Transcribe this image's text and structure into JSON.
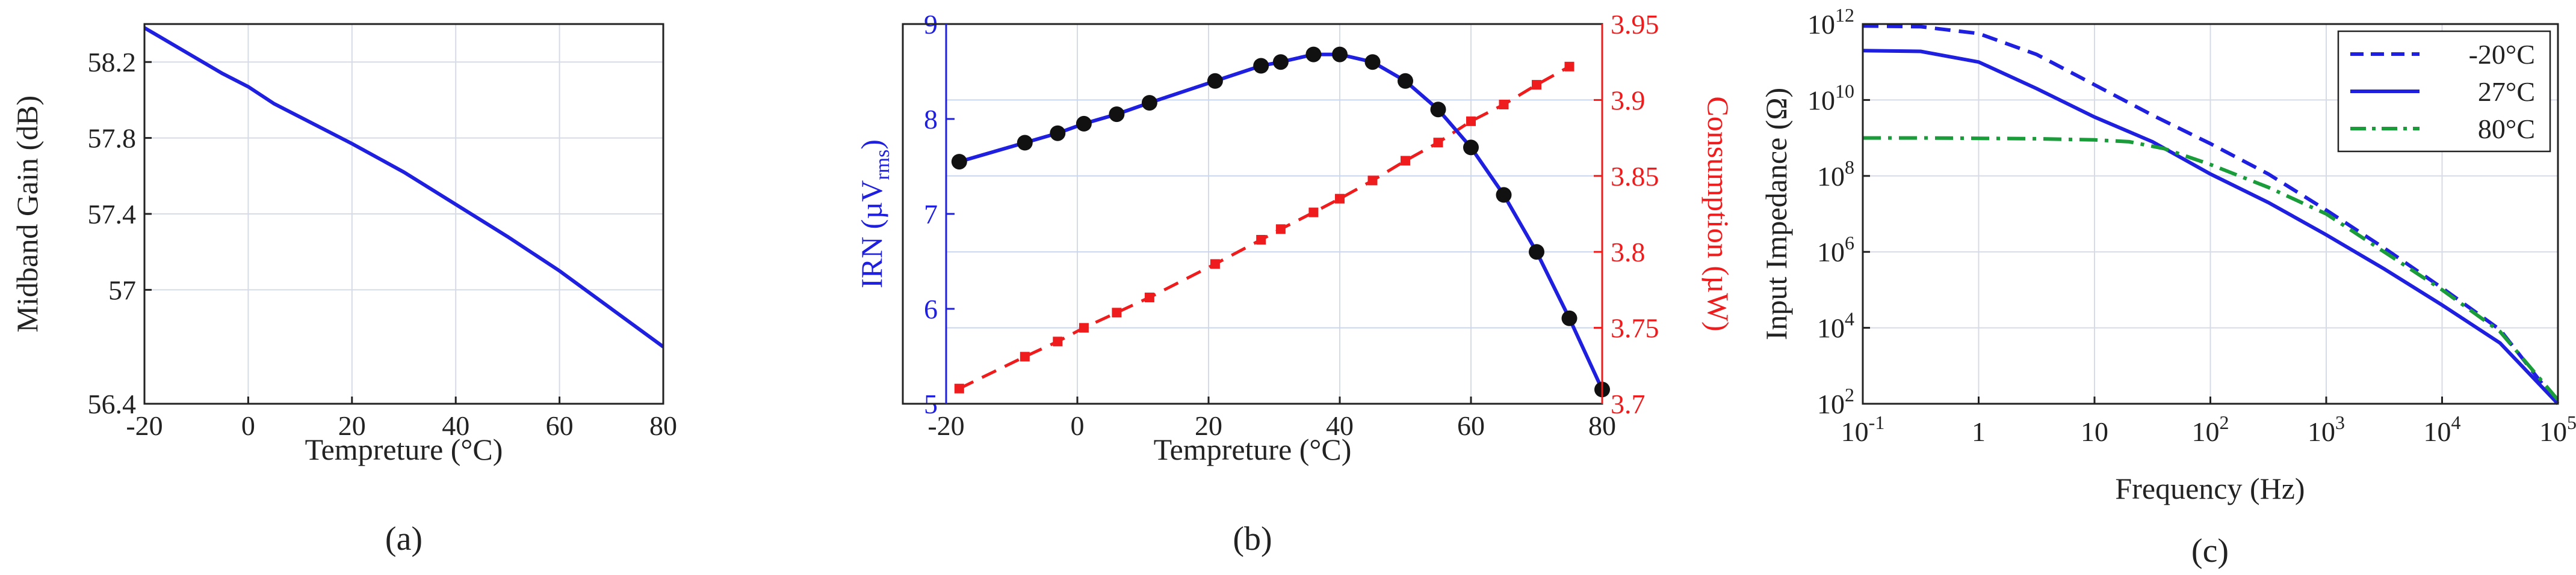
{
  "chart_data": [
    {
      "id": "a",
      "type": "line",
      "caption": "(a)",
      "xlabel": "Tempreture (°C)",
      "ylabel": "Midband Gain (dB)",
      "xlim": [
        -20,
        80
      ],
      "ylim": [
        56.4,
        58.4
      ],
      "xticks": [
        -20,
        0,
        20,
        40,
        60,
        80
      ],
      "xtick_labels": [
        "-20",
        "0",
        "20",
        "40",
        "60",
        "80"
      ],
      "yticks": [
        56.4,
        57.0,
        57.4,
        57.8,
        58.2
      ],
      "ytick_labels": [
        "56.4",
        "57",
        "57.4",
        "57.8",
        "58.2"
      ],
      "grid": true,
      "series": [
        {
          "name": "Midband Gain",
          "color": "#1f1fe0",
          "x": [
            -20,
            -10,
            -5,
            0,
            5,
            10,
            20,
            30,
            40,
            50,
            60,
            70,
            80
          ],
          "y": [
            58.38,
            58.22,
            58.14,
            58.07,
            57.98,
            57.91,
            57.77,
            57.62,
            57.45,
            57.28,
            57.1,
            56.9,
            56.7
          ]
        }
      ]
    },
    {
      "id": "b",
      "type": "line",
      "caption": "(b)",
      "xlabel": "Tempreture (°C)",
      "ylabel": "IRN (µV",
      "ylabel_sub": "rms",
      "ylabel_end": ")",
      "y2label": "Consumption (µW)",
      "xlim": [
        -20,
        80
      ],
      "ylim": [
        5,
        9
      ],
      "y2lim": [
        3.7,
        3.95
      ],
      "xticks": [
        -20,
        0,
        20,
        40,
        60,
        80
      ],
      "xtick_labels": [
        "-20",
        "0",
        "20",
        "40",
        "60",
        "80"
      ],
      "yticks": [
        5,
        6,
        7,
        8,
        9
      ],
      "ytick_labels": [
        "5",
        "6",
        "7",
        "8",
        "9"
      ],
      "y2ticks": [
        3.7,
        3.75,
        3.8,
        3.85,
        3.9,
        3.95
      ],
      "y2tick_labels": [
        "3.7",
        "3.75",
        "3.8",
        "3.85",
        "3.9",
        "3.95"
      ],
      "grid": true,
      "series": [
        {
          "name": "IRN",
          "axis": "left",
          "color": "#1f1fe0",
          "marker": "circle",
          "x": [
            -18,
            -8,
            -3,
            1,
            6,
            11,
            21,
            28,
            31,
            36,
            40,
            45,
            50,
            55,
            60,
            65,
            70,
            75,
            80
          ],
          "y": [
            7.55,
            7.75,
            7.85,
            7.95,
            8.05,
            8.17,
            8.4,
            8.56,
            8.6,
            8.68,
            8.68,
            8.6,
            8.4,
            8.1,
            7.7,
            7.2,
            6.6,
            5.9,
            5.15
          ]
        },
        {
          "name": "Consumption",
          "axis": "right",
          "color": "#ee1c1c",
          "marker": "square",
          "dash": true,
          "x": [
            -18,
            -8,
            -3,
            1,
            6,
            11,
            21,
            28,
            31,
            36,
            40,
            45,
            50,
            55,
            60,
            65,
            70,
            75
          ],
          "y": [
            3.71,
            3.731,
            3.741,
            3.75,
            3.76,
            3.77,
            3.792,
            3.808,
            3.815,
            3.826,
            3.835,
            3.847,
            3.86,
            3.872,
            3.886,
            3.897,
            3.91,
            3.922
          ]
        }
      ]
    },
    {
      "id": "c",
      "type": "line",
      "caption": "(c)",
      "xlabel": "Frequency (Hz)",
      "ylabel": "Input Impedance (Ω)",
      "xscale": "log",
      "yscale": "log",
      "xlim_log10": [
        -1,
        5
      ],
      "ylim_log10": [
        2,
        12
      ],
      "xticks_log10": [
        -1,
        0,
        1,
        2,
        3,
        4,
        5
      ],
      "xtick_labels": [
        {
          "base": "10",
          "exp": "-1"
        },
        {
          "base": "1",
          "exp": ""
        },
        {
          "base": "10",
          "exp": ""
        },
        {
          "base": "10",
          "exp": "2"
        },
        {
          "base": "10",
          "exp": "3"
        },
        {
          "base": "10",
          "exp": "4"
        },
        {
          "base": "10",
          "exp": "5"
        }
      ],
      "yticks_log10": [
        2,
        4,
        6,
        8,
        10,
        12
      ],
      "ytick_labels": [
        {
          "base": "10",
          "exp": "2"
        },
        {
          "base": "10",
          "exp": "4"
        },
        {
          "base": "10",
          "exp": "6"
        },
        {
          "base": "10",
          "exp": "8"
        },
        {
          "base": "10",
          "exp": "10"
        },
        {
          "base": "10",
          "exp": "12"
        }
      ],
      "grid": true,
      "legend_position": "top-right",
      "series": [
        {
          "name": "-20°C",
          "color": "#1f1fe0",
          "style": "dashed",
          "log10_x": [
            -1,
            -0.5,
            0,
            0.5,
            1,
            1.5,
            2,
            2.5,
            3,
            3.5,
            4,
            4.5,
            5
          ],
          "log10_y": [
            11.95,
            11.93,
            11.75,
            11.2,
            10.4,
            9.6,
            8.85,
            8.05,
            7.1,
            6.1,
            5.05,
            3.95,
            2.0
          ]
        },
        {
          "name": "27°C",
          "color": "#1f1fe0",
          "style": "solid",
          "log10_x": [
            -1,
            -0.5,
            0,
            0.5,
            1,
            1.5,
            2,
            2.5,
            3,
            3.5,
            4,
            4.5,
            5
          ],
          "log10_y": [
            11.3,
            11.28,
            11.0,
            10.3,
            9.55,
            8.9,
            8.05,
            7.3,
            6.45,
            5.55,
            4.6,
            3.6,
            2.0
          ]
        },
        {
          "name": "80°C",
          "color": "#1a9c3a",
          "style": "dashdot",
          "log10_x": [
            -1,
            -0.5,
            0,
            0.5,
            1,
            1.3,
            1.6,
            2,
            2.5,
            3,
            3.5,
            4,
            4.5,
            5
          ],
          "log10_y": [
            9.0,
            9.0,
            8.99,
            8.98,
            8.95,
            8.9,
            8.72,
            8.3,
            7.7,
            7.0,
            6.0,
            5.0,
            3.9,
            2.1
          ]
        }
      ]
    }
  ]
}
